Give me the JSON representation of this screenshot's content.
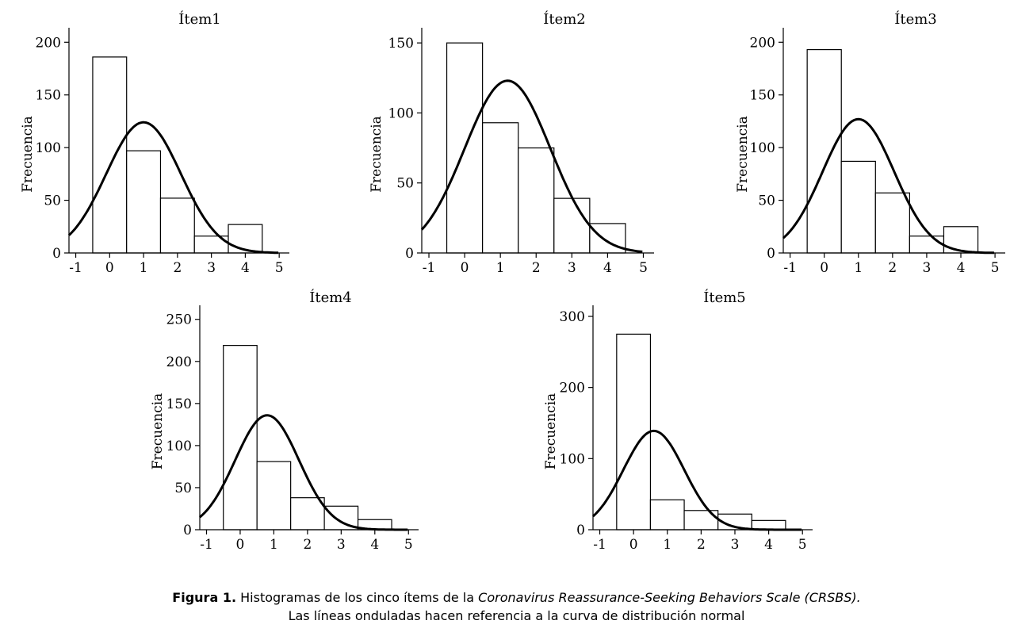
{
  "chart_data": [
    {
      "type": "bar",
      "title": "Ítem1",
      "ylabel": "Frecuencia",
      "xlabel": "",
      "categories": [
        "0",
        "1",
        "2",
        "3",
        "4"
      ],
      "values": [
        186,
        97,
        52,
        16,
        27
      ],
      "xlim": [
        -1.2,
        5.3
      ],
      "ylim": [
        0,
        210
      ],
      "xticks": [
        "-1",
        "0",
        "1",
        "2",
        "3",
        "4",
        "5"
      ],
      "yticks": [
        "0",
        "50",
        "100",
        "150",
        "200"
      ],
      "normal_curve": {
        "mean": 1.0,
        "peak": 124,
        "sd": 1.1
      }
    },
    {
      "type": "bar",
      "title": "Ítem2",
      "ylabel": "Frecuencia",
      "xlabel": "",
      "categories": [
        "0",
        "1",
        "2",
        "3",
        "4"
      ],
      "values": [
        150,
        93,
        75,
        39,
        21
      ],
      "xlim": [
        -1.2,
        5.3
      ],
      "ylim": [
        0,
        158
      ],
      "xticks": [
        "-1",
        "0",
        "1",
        "2",
        "3",
        "4",
        "5"
      ],
      "yticks": [
        "0",
        "50",
        "100",
        "150"
      ],
      "normal_curve": {
        "mean": 1.2,
        "peak": 123,
        "sd": 1.2
      }
    },
    {
      "type": "bar",
      "title": "Ítem3",
      "ylabel": "Frecuencia",
      "xlabel": "",
      "categories": [
        "0",
        "1",
        "2",
        "3",
        "4"
      ],
      "values": [
        193,
        87,
        57,
        16,
        25
      ],
      "xlim": [
        -1.2,
        5.3
      ],
      "ylim": [
        0,
        210
      ],
      "xticks": [
        "-1",
        "0",
        "1",
        "2",
        "3",
        "4",
        "5"
      ],
      "yticks": [
        "0",
        "50",
        "100",
        "150",
        "200"
      ],
      "normal_curve": {
        "mean": 1.0,
        "peak": 127,
        "sd": 1.05
      }
    },
    {
      "type": "bar",
      "title": "Ítem4",
      "ylabel": "Frecuencia",
      "xlabel": "",
      "categories": [
        "0",
        "1",
        "2",
        "3",
        "4"
      ],
      "values": [
        219,
        81,
        38,
        28,
        12
      ],
      "xlim": [
        -1.2,
        5.3
      ],
      "ylim": [
        0,
        262
      ],
      "xticks": [
        "-1",
        "0",
        "1",
        "2",
        "3",
        "4",
        "5"
      ],
      "yticks": [
        "0",
        "50",
        "100",
        "150",
        "200",
        "250"
      ],
      "normal_curve": {
        "mean": 0.8,
        "peak": 136,
        "sd": 0.95
      }
    },
    {
      "type": "bar",
      "title": "Ítem5",
      "ylabel": "Frecuencia",
      "xlabel": "",
      "categories": [
        "0",
        "1",
        "2",
        "3",
        "4"
      ],
      "values": [
        275,
        42,
        27,
        22,
        13
      ],
      "xlim": [
        -1.2,
        5.3
      ],
      "ylim": [
        0,
        310
      ],
      "xticks": [
        "-1",
        "0",
        "1",
        "2",
        "3",
        "4",
        "5"
      ],
      "yticks": [
        "0",
        "100",
        "200",
        "300"
      ],
      "normal_curve": {
        "mean": 0.6,
        "peak": 139,
        "sd": 0.9
      }
    }
  ],
  "caption": {
    "label": "Figura 1.",
    "text_before": "Histogramas de los cinco ítems de la",
    "scale_name": "Coronavirus Reassurance-Seeking Behaviors Scale (CRSBS).",
    "line2": "Las líneas onduladas hacen referencia a la curva de distribución normal"
  }
}
